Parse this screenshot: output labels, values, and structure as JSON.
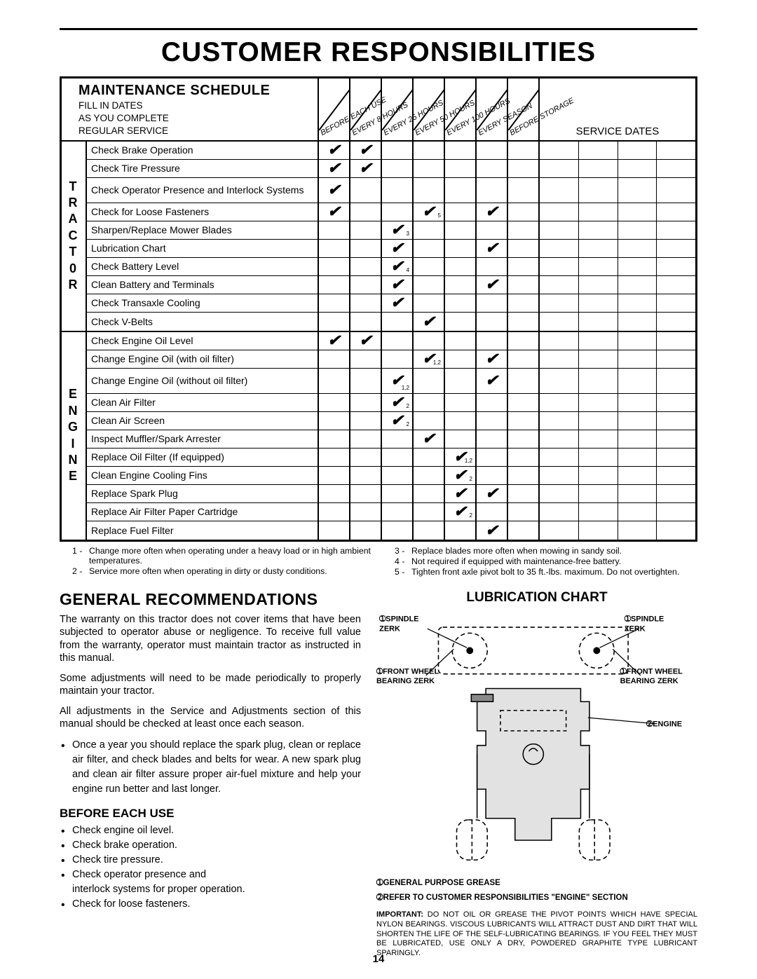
{
  "page": {
    "title": "CUSTOMER RESPONSIBILITIES",
    "number": "14"
  },
  "schedule": {
    "heading": "MAINTENANCE SCHEDULE",
    "sub1": "FILL IN DATES",
    "sub2": "AS YOU COMPLETE",
    "sub3": "REGULAR SERVICE",
    "service_dates": "SERVICE DATES",
    "col_labels": [
      "BEFORE EACH USE",
      "EVERY 8 HOURS",
      "EVERY 25 HOURS",
      "EVERY 50 HOURS",
      "EVERY 100 HOURS",
      "EVERY SEASON",
      "BEFORE STORAGE"
    ],
    "groups": [
      {
        "v": "T\nR\nA\nC\nT\n0\nR",
        "rows": [
          {
            "task": "Check Brake Operation",
            "checks": [
              {
                "c": 0
              },
              {
                "c": 1
              }
            ]
          },
          {
            "task": "Check Tire Pressure",
            "checks": [
              {
                "c": 0
              },
              {
                "c": 1
              }
            ]
          },
          {
            "task": "Check Operator Presence and Interlock Systems",
            "tall": true,
            "checks": [
              {
                "c": 0
              }
            ]
          },
          {
            "task": "Check for Loose Fasteners",
            "checks": [
              {
                "c": 0
              },
              {
                "c": 3,
                "n": "5"
              },
              {
                "c": 5
              }
            ]
          },
          {
            "task": "Sharpen/Replace Mower Blades",
            "checks": [
              {
                "c": 2,
                "n": "3"
              }
            ]
          },
          {
            "task": "Lubrication Chart",
            "checks": [
              {
                "c": 2
              },
              {
                "c": 5
              }
            ]
          },
          {
            "task": "Check Battery Level",
            "checks": [
              {
                "c": 2,
                "n": "4"
              }
            ]
          },
          {
            "task": "Clean Battery and Terminals",
            "checks": [
              {
                "c": 2
              },
              {
                "c": 5
              }
            ]
          },
          {
            "task": "Check Transaxle Cooling",
            "checks": [
              {
                "c": 2
              }
            ]
          },
          {
            "task": "Check V-Belts",
            "checks": [
              {
                "c": 3
              }
            ]
          }
        ]
      },
      {
        "v": "E\nN\nG\nI\nN\nE",
        "rows": [
          {
            "task": "Check Engine Oil Level",
            "checks": [
              {
                "c": 0
              },
              {
                "c": 1
              }
            ]
          },
          {
            "task": "Change Engine Oil (with oil filter)",
            "checks": [
              {
                "c": 3,
                "n": "1,2"
              },
              {
                "c": 5
              }
            ]
          },
          {
            "task": "Change Engine Oil (without oil filter)",
            "tall": true,
            "checks": [
              {
                "c": 2,
                "n": "1,2"
              },
              {
                "c": 5
              }
            ]
          },
          {
            "task": "Clean Air Filter",
            "checks": [
              {
                "c": 2,
                "n": "2"
              }
            ]
          },
          {
            "task": "Clean Air Screen",
            "checks": [
              {
                "c": 2,
                "n": "2"
              }
            ]
          },
          {
            "task": "Inspect Muffler/Spark Arrester",
            "checks": [
              {
                "c": 3
              }
            ]
          },
          {
            "task": "Replace Oil Filter (If equipped)",
            "checks": [
              {
                "c": 4,
                "n": "1,2"
              }
            ]
          },
          {
            "task": "Clean Engine Cooling Fins",
            "checks": [
              {
                "c": 4,
                "n": "2"
              }
            ]
          },
          {
            "task": "Replace Spark Plug",
            "checks": [
              {
                "c": 4
              },
              {
                "c": 5
              }
            ]
          },
          {
            "task": "Replace Air Filter Paper Cartridge",
            "checks": [
              {
                "c": 4,
                "n": "2"
              }
            ]
          },
          {
            "task": "Replace Fuel Filter",
            "checks": [
              {
                "c": 5
              }
            ]
          }
        ]
      }
    ]
  },
  "footnotes": {
    "left": [
      {
        "n": "1 -",
        "t": "Change more often when operating under a heavy load or in high ambient temperatures."
      },
      {
        "n": "2 -",
        "t": "Service more often when operating in dirty or dusty conditions."
      }
    ],
    "right": [
      {
        "n": "3 -",
        "t": "Replace blades more often when mowing in sandy soil."
      },
      {
        "n": "4 -",
        "t": "Not required if equipped with maintenance-free battery."
      },
      {
        "n": "5 -",
        "t": "Tighten front axle pivot bolt to 35 ft.-lbs. maximum. Do not overtighten."
      }
    ]
  },
  "general": {
    "heading": "GENERAL  RECOMMENDATIONS",
    "p1": "The warranty on this tractor does not cover items that have been subjected to operator abuse or negligence. To receive full value from the warranty, operator must maintain tractor as instructed in this manual.",
    "p2": "Some adjustments will need to be made periodically to properly maintain your tractor.",
    "p3": "All adjustments in the Service and Adjustments section of this manual should be checked at least once each season.",
    "b1": "Once a year you should replace the spark plug, clean or replace air filter, and check blades and belts for wear.  A new spark plug and clean air filter assure proper air-fuel mixture and help your engine run better and last longer."
  },
  "before": {
    "heading": "BEFORE EACH USE",
    "items": [
      "Check engine oil level.",
      "Check brake operation.",
      "Check tire pressure.",
      "Check operator presence and",
      "interlock systems for proper operation.",
      "Check for loose fasteners."
    ]
  },
  "lubrication": {
    "heading": "LUBRICATION CHART",
    "labels": {
      "spindle_l": "➀SPINDLE",
      "zerk_l": "ZERK",
      "spindle_r": "➀SPINDLE",
      "zerk_r": "ZERK",
      "fwheel_l1": "➀FRONT WHEEL",
      "fwheel_l2": "BEARING ZERK",
      "fwheel_r1": "➀FRONT WHEEL",
      "fwheel_r2": "BEARING ZERK",
      "engine": "➁ENGINE"
    },
    "legend1": "➀GENERAL PURPOSE GREASE",
    "legend2": "➁REFER TO CUSTOMER RESPONSIBILITIES \"ENGINE\" SECTION",
    "important_label": "IMPORTANT:",
    "important": " DO NOT OIL OR GREASE THE PIVOT POINTS WHICH HAVE SPECIAL NYLON BEARINGS. VISCOUS LUBRICANTS WILL ATTRACT DUST AND DIRT THAT WILL SHORTEN THE LIFE OF THE SELF-LUBRICATING BEARINGS. IF YOU FEEL THEY MUST BE LUBRICATED, USE ONLY A DRY, POWDERED GRAPHITE TYPE LUBRICANT SPARINGLY."
  },
  "colors": {
    "tractor_fill": "#e2e2e2",
    "line": "#000000"
  }
}
